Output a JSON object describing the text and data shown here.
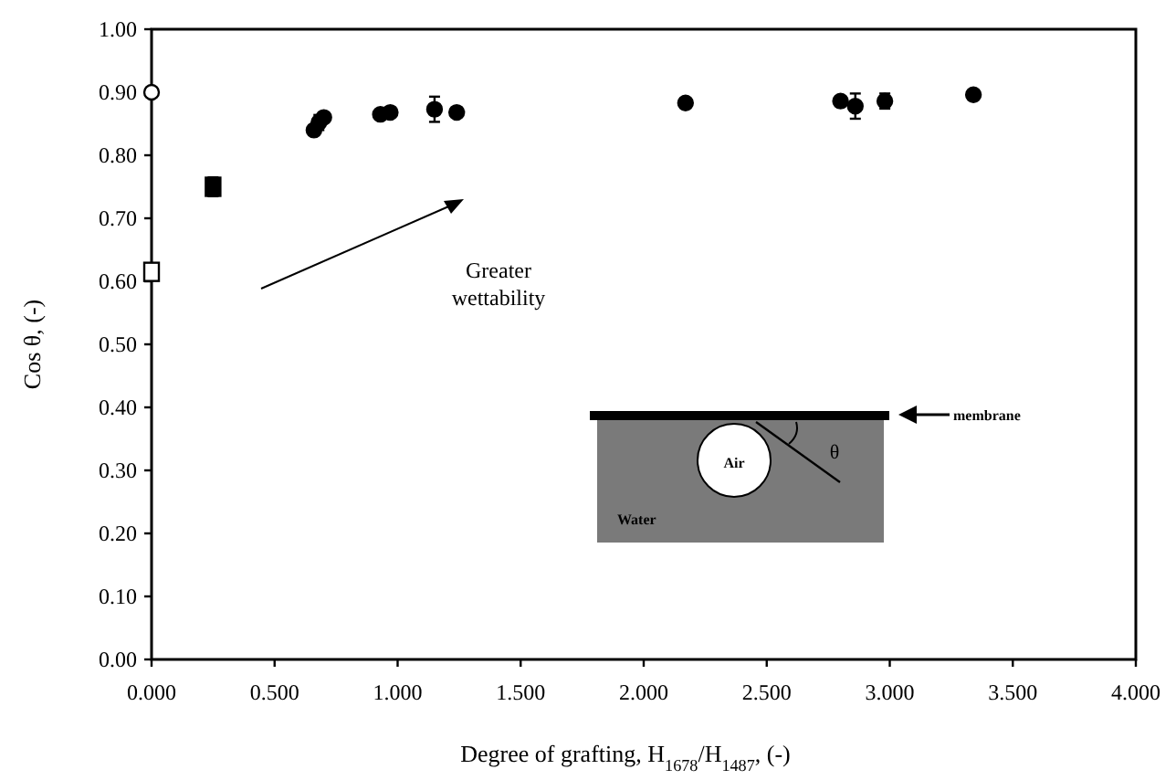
{
  "chart_data": {
    "type": "scatter",
    "xlabel": "Degree of grafting, H$_{1678}$/H$_{1487}$, (-)",
    "ylabel": "Cos θ, (-)",
    "xlim": [
      0,
      4
    ],
    "ylim": [
      0,
      1
    ],
    "xticks": [
      {
        "value": 0,
        "label": "0.000"
      },
      {
        "value": 0.5,
        "label": "0.500"
      },
      {
        "value": 1,
        "label": "1.000"
      },
      {
        "value": 1.5,
        "label": "1.500"
      },
      {
        "value": 2,
        "label": "2.000"
      },
      {
        "value": 2.5,
        "label": "2.500"
      },
      {
        "value": 3,
        "label": "3.000"
      },
      {
        "value": 3.5,
        "label": "3.500"
      },
      {
        "value": 4,
        "label": "4.000"
      }
    ],
    "yticks": [
      {
        "value": 0,
        "label": "0.00"
      },
      {
        "value": 0.1,
        "label": "0.10"
      },
      {
        "value": 0.2,
        "label": "0.20"
      },
      {
        "value": 0.3,
        "label": "0.30"
      },
      {
        "value": 0.4,
        "label": "0.40"
      },
      {
        "value": 0.5,
        "label": "0.50"
      },
      {
        "value": 0.6,
        "label": "0.60"
      },
      {
        "value": 0.7,
        "label": "0.70"
      },
      {
        "value": 0.8,
        "label": "0.80"
      },
      {
        "value": 0.9,
        "label": "0.90"
      },
      {
        "value": 1,
        "label": "1.00"
      }
    ],
    "grid": false,
    "series": [
      {
        "color": "#000000",
        "marker": "circle",
        "x": [
          0.66,
          0.68,
          0.7,
          0.93,
          0.97,
          1.15,
          1.24,
          2.17,
          2.8,
          2.86,
          2.98,
          3.34
        ],
        "values": [
          0.84,
          0.852,
          0.86,
          0.865,
          0.868,
          0.873,
          0.868,
          0.883,
          0.886,
          0.878,
          0.886,
          0.896
        ],
        "errors": [
          null,
          0.012,
          null,
          null,
          null,
          0.02,
          null,
          null,
          null,
          0.02,
          0.012,
          null
        ]
      },
      {
        "color": "#000000",
        "marker": "square",
        "x": [
          0.25
        ],
        "values": [
          0.75
        ],
        "errors": [
          0.015
        ]
      },
      {
        "color": "#ffffff",
        "marker": "circle",
        "x": [
          0
        ],
        "values": [
          0.9
        ]
      },
      {
        "color": "#ffffff",
        "marker": "square",
        "x": [
          0
        ],
        "values": [
          0.615
        ]
      }
    ],
    "annotations": [
      "Greater wettability",
      "membrane",
      "Air",
      "Water",
      "θ"
    ]
  }
}
